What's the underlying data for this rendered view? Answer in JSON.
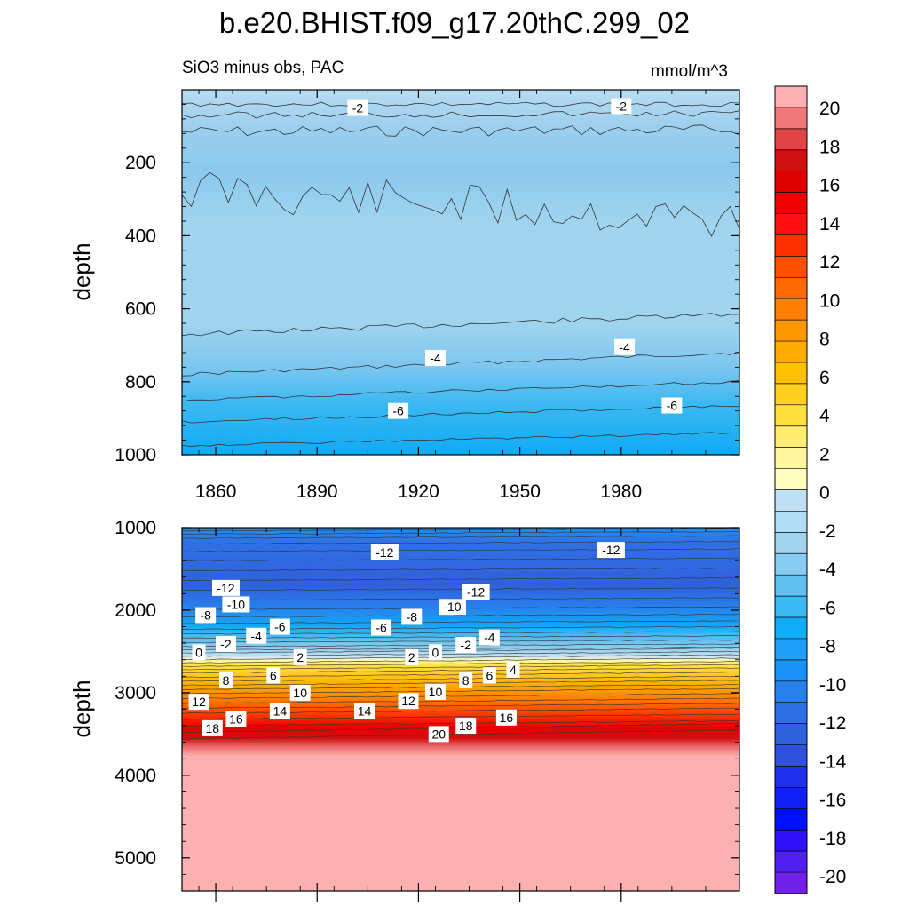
{
  "chart_data": {
    "type": "heatmap",
    "title": "b.e20.BHIST.f09_g17.20thC.299_02",
    "subtitle_left": "SiO3 minus obs, PAC",
    "subtitle_right": "mmol/m^3",
    "ylabel": "depth",
    "x_ticks": [
      "1860",
      "1890",
      "1920",
      "1950",
      "1980"
    ],
    "x_range": [
      1850,
      2015
    ],
    "panels": [
      {
        "name": "upper",
        "ylim": [
          0,
          1000
        ],
        "y_ticks": [
          "200",
          "400",
          "600",
          "800",
          "1000"
        ],
        "contour_labels": [
          {
            "text": "-2",
            "x": 1902,
            "y": 50
          },
          {
            "text": "-2",
            "x": 1980,
            "y": 45
          },
          {
            "text": "-4",
            "x": 1925,
            "y": 735
          },
          {
            "text": "-4",
            "x": 1981,
            "y": 705
          },
          {
            "text": "-6",
            "x": 1914,
            "y": 880
          },
          {
            "text": "-6",
            "x": 1995,
            "y": 865
          }
        ]
      },
      {
        "name": "lower",
        "ylim": [
          1000,
          5400
        ],
        "y_ticks": [
          "1000",
          "2000",
          "3000",
          "4000",
          "5000"
        ],
        "contour_labels": [
          {
            "text": "-12",
            "x": 1910,
            "y": 1300
          },
          {
            "text": "-12",
            "x": 1863,
            "y": 1730
          },
          {
            "text": "-12",
            "x": 1937,
            "y": 1780
          },
          {
            "text": "-12",
            "x": 1977,
            "y": 1270
          },
          {
            "text": "-10",
            "x": 1866,
            "y": 1930
          },
          {
            "text": "-10",
            "x": 1930,
            "y": 1960
          },
          {
            "text": "-8",
            "x": 1857,
            "y": 2060
          },
          {
            "text": "-8",
            "x": 1918,
            "y": 2080
          },
          {
            "text": "-6",
            "x": 1879,
            "y": 2200
          },
          {
            "text": "-6",
            "x": 1909,
            "y": 2210
          },
          {
            "text": "-4",
            "x": 1872,
            "y": 2310
          },
          {
            "text": "-4",
            "x": 1941,
            "y": 2330
          },
          {
            "text": "-2",
            "x": 1863,
            "y": 2410
          },
          {
            "text": "-2",
            "x": 1934,
            "y": 2420
          },
          {
            "text": "0",
            "x": 1855,
            "y": 2510
          },
          {
            "text": "0",
            "x": 1925,
            "y": 2510
          },
          {
            "text": "2",
            "x": 1885,
            "y": 2570
          },
          {
            "text": "2",
            "x": 1918,
            "y": 2570
          },
          {
            "text": "4",
            "x": 1948,
            "y": 2720
          },
          {
            "text": "6",
            "x": 1877,
            "y": 2790
          },
          {
            "text": "6",
            "x": 1941,
            "y": 2790
          },
          {
            "text": "8",
            "x": 1863,
            "y": 2850
          },
          {
            "text": "8",
            "x": 1934,
            "y": 2850
          },
          {
            "text": "10",
            "x": 1885,
            "y": 3000
          },
          {
            "text": "10",
            "x": 1925,
            "y": 2990
          },
          {
            "text": "12",
            "x": 1855,
            "y": 3110
          },
          {
            "text": "12",
            "x": 1917,
            "y": 3100
          },
          {
            "text": "14",
            "x": 1879,
            "y": 3220
          },
          {
            "text": "14",
            "x": 1904,
            "y": 3220
          },
          {
            "text": "16",
            "x": 1866,
            "y": 3320
          },
          {
            "text": "16",
            "x": 1946,
            "y": 3300
          },
          {
            "text": "18",
            "x": 1859,
            "y": 3430
          },
          {
            "text": "18",
            "x": 1934,
            "y": 3400
          },
          {
            "text": "20",
            "x": 1926,
            "y": 3500
          }
        ]
      }
    ],
    "colorbar": {
      "labels": [
        "20",
        "18",
        "16",
        "14",
        "12",
        "10",
        "8",
        "6",
        "4",
        "2",
        "0",
        "-2",
        "-4",
        "-6",
        "-8",
        "-10",
        "-12",
        "-14",
        "-16",
        "-18",
        "-20"
      ],
      "colors": [
        "#fbb1b1",
        "#f07878",
        "#e04444",
        "#d01010",
        "#e00000",
        "#f00000",
        "#ff1010",
        "#ff3000",
        "#ff5000",
        "#ff6a00",
        "#ff8000",
        "#ff9800",
        "#ffac00",
        "#ffc000",
        "#ffd020",
        "#ffe040",
        "#ffec70",
        "#fff6a0",
        "#fffcc0",
        "#c0e0f4",
        "#b0dcf4",
        "#a0d4ee",
        "#88ccf2",
        "#60c0f0",
        "#3cb8f2",
        "#10acf8",
        "#20a0f8",
        "#1890f8",
        "#2880ec",
        "#3070e4",
        "#3060dc",
        "#3050dc",
        "#2030ec",
        "#1020f4",
        "#0010ff",
        "#3010f8",
        "#5020f0",
        "#7020e8"
      ]
    }
  }
}
